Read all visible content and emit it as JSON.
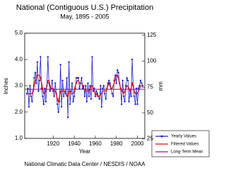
{
  "chart_data": {
    "type": "line",
    "title": "National (Contiguous U.S.) Precipitation",
    "subtitle": "May, 1895 - 2005",
    "x_label": "Year",
    "y_label": "Inches",
    "y2_label": "mm",
    "source": "National Climatic Data Center / NESDIS / NOAA",
    "x": [
      1895,
      1896,
      1897,
      1898,
      1899,
      1900,
      1901,
      1902,
      1903,
      1904,
      1905,
      1906,
      1907,
      1908,
      1909,
      1910,
      1911,
      1912,
      1913,
      1914,
      1915,
      1916,
      1917,
      1918,
      1919,
      1920,
      1921,
      1922,
      1923,
      1924,
      1925,
      1926,
      1927,
      1928,
      1929,
      1930,
      1931,
      1932,
      1933,
      1934,
      1935,
      1936,
      1937,
      1938,
      1939,
      1940,
      1941,
      1942,
      1943,
      1944,
      1945,
      1946,
      1947,
      1948,
      1949,
      1950,
      1951,
      1952,
      1953,
      1954,
      1955,
      1956,
      1957,
      1958,
      1959,
      1960,
      1961,
      1962,
      1963,
      1964,
      1965,
      1966,
      1967,
      1968,
      1969,
      1970,
      1971,
      1972,
      1973,
      1974,
      1975,
      1976,
      1977,
      1978,
      1979,
      1980,
      1981,
      1982,
      1983,
      1984,
      1985,
      1986,
      1987,
      1988,
      1989,
      1990,
      1991,
      1992,
      1993,
      1994,
      1995,
      1996,
      1997,
      1998,
      1999,
      2000,
      2001,
      2002,
      2003,
      2004,
      2005
    ],
    "xlim": [
      1893,
      2007
    ],
    "xticks": [
      1920,
      1940,
      1960,
      1980,
      2000
    ],
    "ylim": [
      1.0,
      5.0
    ],
    "yticks": [
      {
        "value": 1,
        "label": "1.0"
      },
      {
        "value": 2,
        "label": "2.0"
      },
      {
        "value": 3,
        "label": "3.0"
      },
      {
        "value": 4,
        "label": "4.0"
      },
      {
        "value": 5,
        "label": "5.0"
      }
    ],
    "y2lim": [
      25.4,
      127
    ],
    "y2ticks": [
      25,
      50,
      75,
      100,
      125
    ],
    "series": [
      {
        "name": "Yearly Values",
        "color": "#1f1fd0",
        "markers": true,
        "values": [
          2.7,
          2.9,
          2.2,
          3.0,
          2.6,
          2.4,
          2.8,
          3.3,
          3.5,
          3.1,
          3.9,
          2.8,
          3.2,
          4.1,
          2.9,
          2.6,
          2.3,
          2.9,
          2.4,
          3.0,
          4.1,
          3.1,
          2.8,
          2.9,
          3.2,
          2.8,
          2.6,
          3.1,
          2.7,
          2.3,
          2.0,
          2.4,
          3.8,
          2.2,
          3.2,
          2.6,
          2.8,
          2.7,
          3.3,
          1.8,
          3.9,
          2.3,
          2.8,
          3.1,
          2.4,
          2.6,
          2.9,
          3.3,
          3.3,
          3.3,
          2.9,
          3.1,
          3.3,
          2.9,
          3.0,
          2.6,
          3.0,
          2.4,
          3.1,
          2.6,
          3.0,
          2.5,
          4.1,
          2.8,
          2.9,
          2.6,
          2.8,
          2.7,
          2.6,
          2.5,
          3.0,
          2.2,
          2.9,
          3.0,
          2.7,
          2.5,
          2.9,
          3.1,
          3.2,
          3.1,
          2.9,
          2.7,
          2.6,
          3.2,
          3.4,
          3.1,
          3.6,
          3.5,
          3.1,
          2.9,
          2.3,
          3.2,
          2.6,
          2.4,
          3.0,
          3.3,
          3.2,
          2.4,
          2.8,
          2.6,
          4.0,
          3.0,
          2.6,
          2.3,
          2.9,
          2.3,
          2.9,
          3.0,
          3.2,
          3.1,
          3.0
        ]
      },
      {
        "name": "Filtered Values",
        "color": "#e01010",
        "markers": false,
        "values": [
          2.7,
          2.7,
          2.7,
          2.7,
          2.7,
          2.7,
          2.8,
          3.0,
          3.2,
          3.3,
          3.4,
          3.4,
          3.4,
          3.3,
          3.1,
          2.9,
          2.7,
          2.7,
          2.8,
          3.0,
          3.2,
          3.2,
          3.0,
          2.9,
          2.9,
          2.9,
          2.8,
          2.8,
          2.7,
          2.5,
          2.4,
          2.6,
          2.8,
          2.8,
          2.8,
          2.8,
          2.8,
          2.7,
          2.6,
          2.6,
          2.8,
          2.8,
          2.7,
          2.7,
          2.7,
          2.8,
          3.0,
          3.1,
          3.2,
          3.2,
          3.1,
          3.1,
          3.1,
          3.0,
          2.9,
          2.8,
          2.8,
          2.8,
          2.8,
          2.8,
          2.9,
          3.0,
          3.0,
          2.9,
          2.8,
          2.7,
          2.7,
          2.6,
          2.6,
          2.6,
          2.7,
          2.7,
          2.8,
          2.8,
          2.8,
          2.8,
          2.9,
          3.0,
          3.1,
          3.0,
          2.9,
          2.9,
          3.0,
          3.1,
          3.3,
          3.4,
          3.4,
          3.3,
          3.1,
          2.9,
          2.8,
          2.8,
          2.7,
          2.8,
          2.9,
          3.0,
          3.0,
          2.9,
          2.8,
          2.9,
          3.1,
          3.0,
          2.8,
          2.7,
          2.7,
          2.7,
          2.8,
          2.9,
          3.0,
          3.0,
          3.0
        ]
      }
    ],
    "mean": {
      "name": "Long-Term Mean",
      "value": 2.87,
      "color": "#b000c0"
    }
  }
}
